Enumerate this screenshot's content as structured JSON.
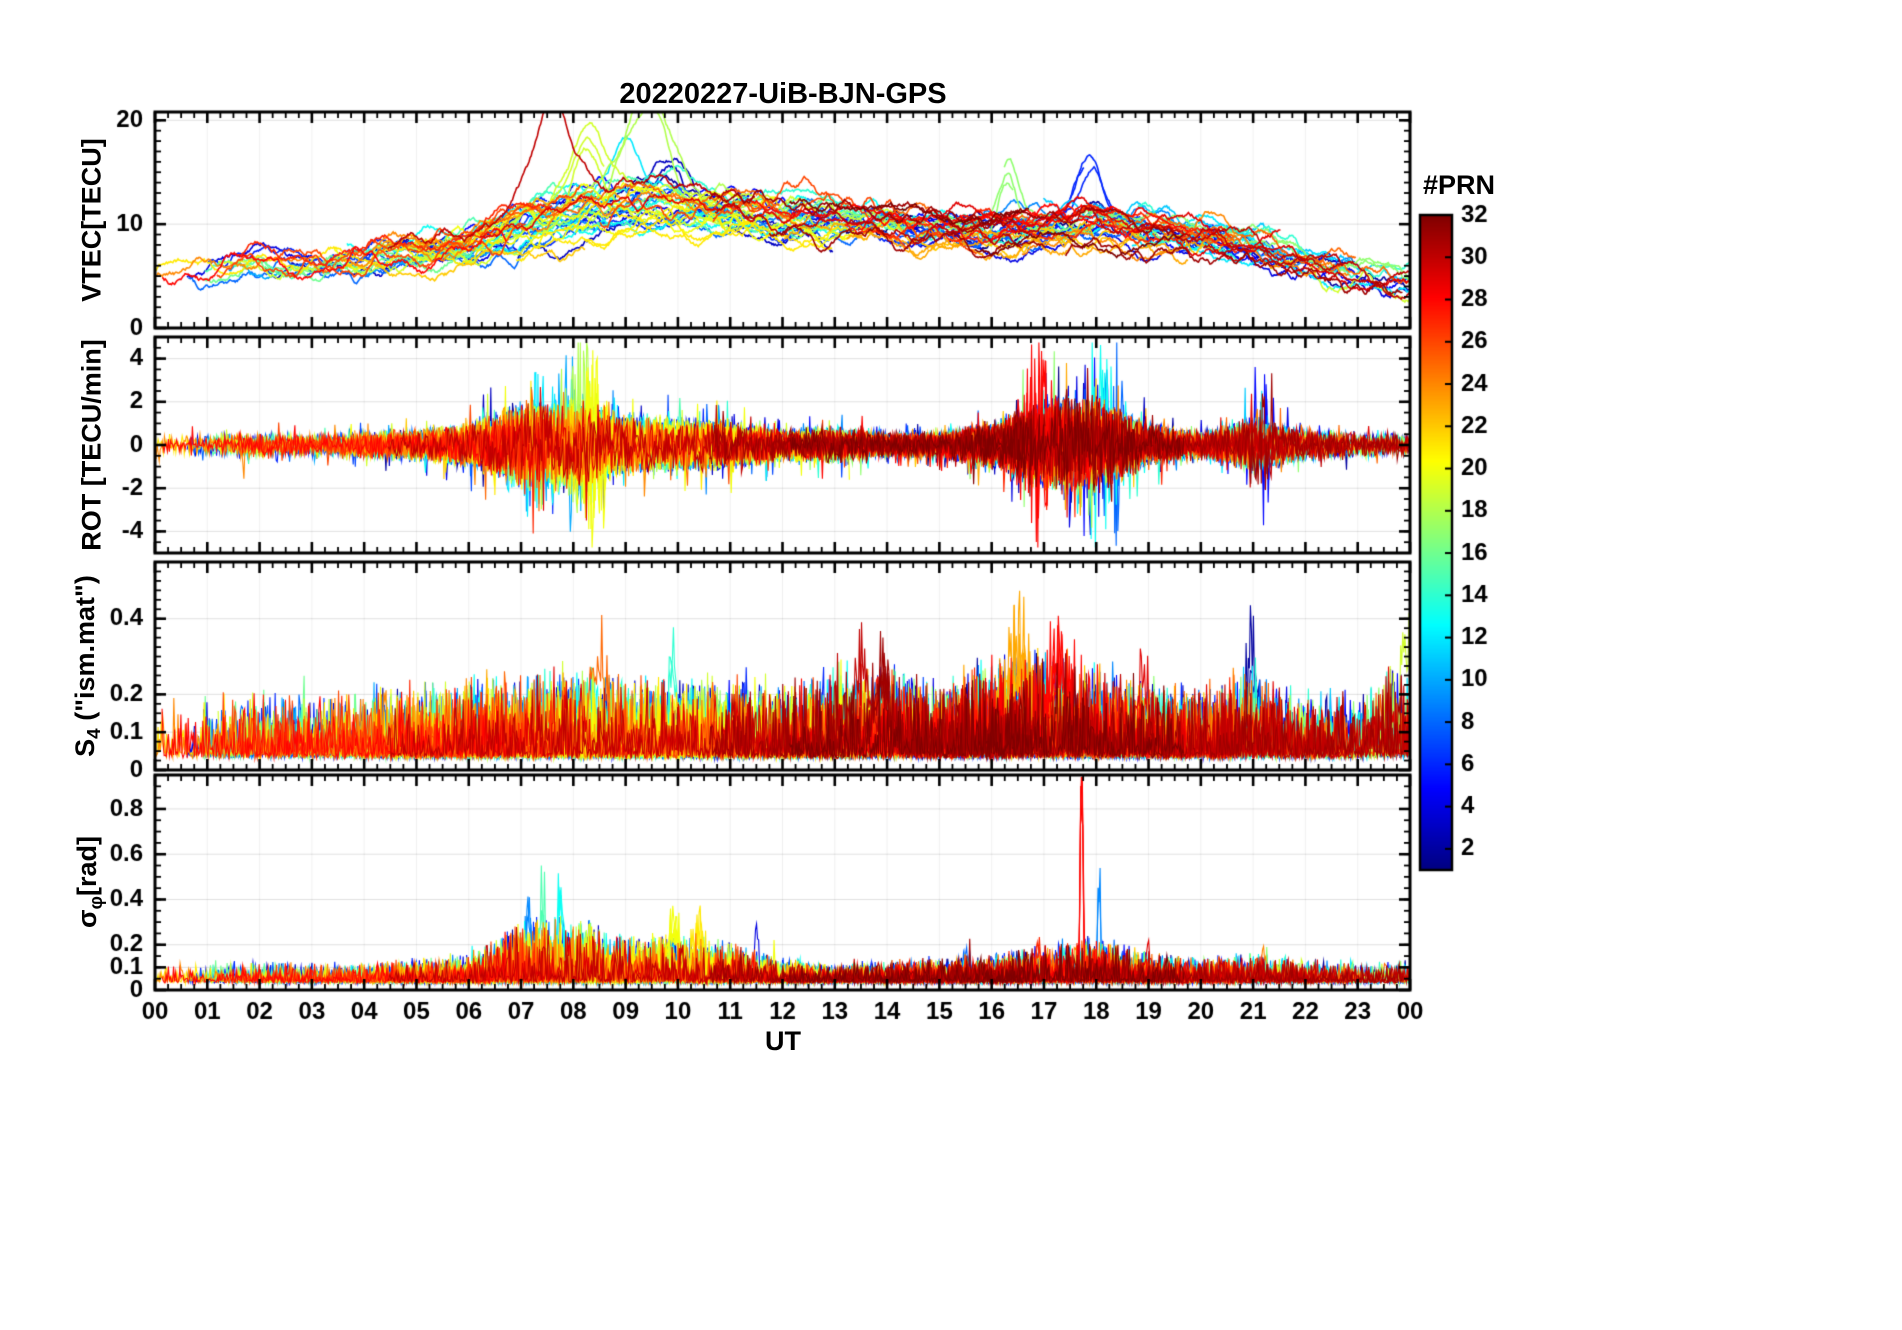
{
  "figure": {
    "background": "#ffffff"
  },
  "chart_data": {
    "type": "line",
    "title": "20220227-UiB-BJN-GPS",
    "xlabel": "UT",
    "x_range": [
      0,
      24
    ],
    "x_tick_labels": [
      "00",
      "01",
      "02",
      "03",
      "04",
      "05",
      "06",
      "07",
      "08",
      "09",
      "10",
      "11",
      "12",
      "13",
      "14",
      "15",
      "16",
      "17",
      "18",
      "19",
      "20",
      "21",
      "22",
      "23",
      "00"
    ],
    "x_minor_step": 0.25,
    "grid": true,
    "series_count": 32,
    "colorbar": {
      "label": "#PRN",
      "colormap": "jet",
      "range": [
        1,
        32
      ],
      "ticks": [
        2,
        4,
        6,
        8,
        10,
        12,
        14,
        16,
        18,
        20,
        22,
        24,
        26,
        28,
        30,
        32
      ]
    },
    "panels": [
      {
        "name": "vtec",
        "ylabel_main": "VTEC[TECU]",
        "ylabel_sub": "",
        "ylabel_rest": "",
        "ylim": [
          0,
          20.8
        ],
        "yticks": [
          0,
          10,
          20
        ],
        "ytick_labels": [
          "0",
          "10",
          "20"
        ],
        "yminor_step": 1,
        "hourly_median": [
          5.3,
          5.5,
          6.0,
          6.0,
          6.3,
          6.8,
          7.5,
          9.0,
          10.5,
          11.5,
          11.5,
          11.0,
          10.5,
          10.2,
          10.0,
          9.5,
          9.0,
          9.5,
          10.0,
          9.0,
          8.5,
          7.5,
          6.3,
          5.0,
          4.2
        ],
        "hourly_spread": [
          1.2,
          1.2,
          1.3,
          1.3,
          1.5,
          1.6,
          1.9,
          2.6,
          3.0,
          3.0,
          2.8,
          2.5,
          2.2,
          2.0,
          2.0,
          2.0,
          2.0,
          2.3,
          2.3,
          2.0,
          1.8,
          1.5,
          1.3,
          1.2,
          1.2
        ],
        "events": [
          {
            "prn": 30,
            "t": 7.6,
            "h": 9.0,
            "w": 0.5
          },
          {
            "prn": 18,
            "t": 9.4,
            "h": 9.5,
            "w": 0.6
          },
          {
            "prn": 19,
            "t": 8.3,
            "h": 7.0,
            "w": 0.5
          },
          {
            "prn": 12,
            "t": 8.9,
            "h": 6.0,
            "w": 0.5
          },
          {
            "prn": 3,
            "t": 9.8,
            "h": 5.5,
            "w": 0.8
          },
          {
            "prn": 26,
            "t": 12.5,
            "h": 3.5,
            "w": 1.5
          },
          {
            "prn": 17,
            "t": 16.3,
            "h": 5.0,
            "w": 0.25
          },
          {
            "prn": 6,
            "t": 17.9,
            "h": 5.5,
            "w": 0.35
          },
          {
            "prn": 24,
            "t": 20.3,
            "h": 3.0,
            "w": 0.5
          }
        ]
      },
      {
        "name": "rot",
        "ylabel_main": "ROT [TECU/min]",
        "ylabel_sub": "",
        "ylabel_rest": "",
        "ylim": [
          -5,
          5
        ],
        "yticks": [
          -4,
          -2,
          0,
          2,
          4
        ],
        "ytick_labels": [
          "-4",
          "-2",
          "0",
          "2",
          "4"
        ],
        "yminor_step": 0.5,
        "hourly_amplitude": [
          0.4,
          0.4,
          0.45,
          0.4,
          0.5,
          0.6,
          0.8,
          1.6,
          1.7,
          1.1,
          1.0,
          0.9,
          0.6,
          0.7,
          0.45,
          0.5,
          0.9,
          1.7,
          1.8,
          0.8,
          0.5,
          1.1,
          0.6,
          0.45,
          0.4
        ],
        "events": [
          {
            "prn": 24,
            "t": 1.7,
            "h": 1.8,
            "w": 0.05
          },
          {
            "prn": 12,
            "t": 7.2,
            "h": 2.6,
            "w": 0.3
          },
          {
            "prn": 10,
            "t": 7.9,
            "h": 2.4,
            "w": 0.3
          },
          {
            "prn": 18,
            "t": 8.2,
            "h": 3.2,
            "w": 0.25
          },
          {
            "prn": 20,
            "t": 8.4,
            "h": 3.0,
            "w": 0.2
          },
          {
            "prn": 4,
            "t": 17.8,
            "h": 2.8,
            "w": 0.4
          },
          {
            "prn": 13,
            "t": 18.1,
            "h": 3.2,
            "w": 0.3
          },
          {
            "prn": 28,
            "t": 16.9,
            "h": 2.4,
            "w": 0.3
          },
          {
            "prn": 8,
            "t": 18.3,
            "h": 2.6,
            "w": 0.25
          },
          {
            "prn": 31,
            "t": 21.1,
            "h": 2.2,
            "w": 0.2
          },
          {
            "prn": 5,
            "t": 21.2,
            "h": 1.8,
            "w": 0.15
          }
        ]
      },
      {
        "name": "s4",
        "ylabel_main": "S",
        "ylabel_sub": "4",
        "ylabel_rest": " (\"ism.mat\")",
        "ylim": [
          0,
          0.55
        ],
        "yticks": [
          0,
          0.1,
          0.2,
          0.4
        ],
        "ytick_labels": [
          "0",
          "0.1",
          "0.2",
          "0.4"
        ],
        "yminor_step": 0.025,
        "hourly_amplitude": [
          0.08,
          0.08,
          0.09,
          0.08,
          0.09,
          0.09,
          0.1,
          0.11,
          0.12,
          0.1,
          0.1,
          0.1,
          0.09,
          0.12,
          0.12,
          0.1,
          0.13,
          0.14,
          0.12,
          0.1,
          0.09,
          0.12,
          0.08,
          0.09,
          0.14
        ],
        "events": [
          {
            "prn": 25,
            "t": 8.5,
            "h": 0.2,
            "w": 0.25
          },
          {
            "prn": 14,
            "t": 9.9,
            "h": 0.2,
            "w": 0.1
          },
          {
            "prn": 30,
            "t": 13.5,
            "h": 0.17,
            "w": 0.3
          },
          {
            "prn": 31,
            "t": 13.9,
            "h": 0.16,
            "w": 0.2
          },
          {
            "prn": 23,
            "t": 16.5,
            "h": 0.2,
            "w": 0.3
          },
          {
            "prn": 28,
            "t": 17.3,
            "h": 0.18,
            "w": 0.3
          },
          {
            "prn": 2,
            "t": 21.0,
            "h": 0.2,
            "w": 0.15
          },
          {
            "prn": 29,
            "t": 18.9,
            "h": 0.14,
            "w": 0.2
          },
          {
            "prn": 19,
            "t": 23.9,
            "h": 0.26,
            "w": 0.12
          },
          {
            "prn": 6,
            "t": 11.3,
            "h": 0.12,
            "w": 0.15
          }
        ]
      },
      {
        "name": "sigma_phi",
        "ylabel_main": "σ",
        "ylabel_sub": "φ",
        "ylabel_rest": "[rad]",
        "ylim": [
          0,
          0.95
        ],
        "yticks": [
          0,
          0.1,
          0.2,
          0.4,
          0.6,
          0.8
        ],
        "ytick_labels": [
          "0",
          "0.1",
          "0.2",
          "0.4",
          "0.6",
          "0.8"
        ],
        "yminor_step": 0.05,
        "hourly_amplitude": [
          0.05,
          0.05,
          0.05,
          0.05,
          0.05,
          0.06,
          0.07,
          0.16,
          0.18,
          0.12,
          0.13,
          0.11,
          0.06,
          0.05,
          0.05,
          0.07,
          0.07,
          0.1,
          0.12,
          0.08,
          0.06,
          0.08,
          0.06,
          0.05,
          0.06
        ],
        "events": [
          {
            "prn": 28,
            "t": 17.72,
            "h": 0.9,
            "w": 0.035
          },
          {
            "prn": 9,
            "t": 18.05,
            "h": 0.38,
            "w": 0.04
          },
          {
            "prn": 13,
            "t": 7.75,
            "h": 0.38,
            "w": 0.07
          },
          {
            "prn": 15,
            "t": 7.4,
            "h": 0.3,
            "w": 0.08
          },
          {
            "prn": 9,
            "t": 7.15,
            "h": 0.26,
            "w": 0.07
          },
          {
            "prn": 20,
            "t": 9.9,
            "h": 0.2,
            "w": 0.15
          },
          {
            "prn": 21,
            "t": 10.4,
            "h": 0.18,
            "w": 0.12
          },
          {
            "prn": 4,
            "t": 11.5,
            "h": 0.2,
            "w": 0.05
          },
          {
            "prn": 27,
            "t": 16.9,
            "h": 0.14,
            "w": 0.05
          },
          {
            "prn": 8,
            "t": 15.5,
            "h": 0.09,
            "w": 0.1
          },
          {
            "prn": 29,
            "t": 19.0,
            "h": 0.11,
            "w": 0.08
          },
          {
            "prn": 24,
            "t": 21.2,
            "h": 0.12,
            "w": 0.08
          }
        ]
      }
    ]
  }
}
